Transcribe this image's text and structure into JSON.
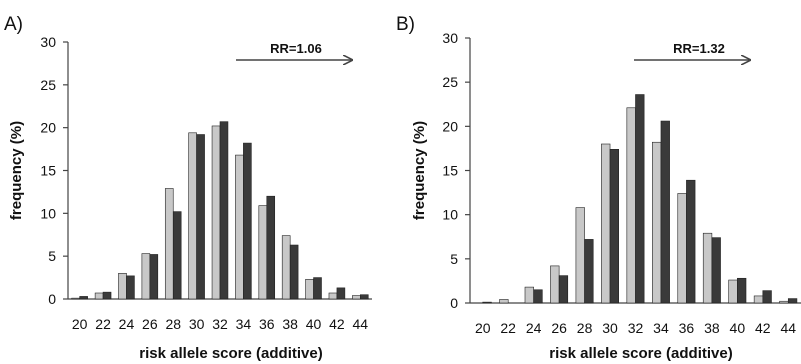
{
  "colors": {
    "background": "#ffffff",
    "axis": "#444444",
    "series_light": "#c8c8c8",
    "series_dark": "#3a3a3a",
    "bar_stroke": "#222222",
    "text": "#111111"
  },
  "chart_data": [
    {
      "type": "bar",
      "panel_label": "A)",
      "xlabel": "risk allele score (additive)",
      "ylabel": "frequency (%)",
      "ylim": [
        0,
        30
      ],
      "yticks": [
        "0",
        "5",
        "10",
        "15",
        "20",
        "25",
        "30"
      ],
      "grid": false,
      "categories": [
        "20",
        "22",
        "24",
        "26",
        "28",
        "30",
        "32",
        "34",
        "36",
        "38",
        "40",
        "42",
        "44"
      ],
      "series": [
        {
          "values": [
            0.1,
            0.7,
            3.0,
            5.3,
            12.9,
            19.4,
            20.2,
            16.8,
            10.9,
            7.4,
            2.3,
            0.7,
            0.4
          ]
        },
        {
          "values": [
            0.3,
            0.8,
            2.7,
            5.2,
            10.2,
            19.2,
            20.7,
            18.2,
            12.0,
            6.3,
            2.5,
            1.3,
            0.5
          ]
        }
      ],
      "annotation": {
        "text": "RR=1.06",
        "arrow": "right"
      }
    },
    {
      "type": "bar",
      "panel_label": "B)",
      "xlabel": "risk allele score (additive)",
      "ylabel": "frequency (%)",
      "ylim": [
        0,
        30
      ],
      "yticks": [
        "0",
        "5",
        "10",
        "15",
        "20",
        "25",
        "30"
      ],
      "grid": false,
      "categories": [
        "20",
        "22",
        "24",
        "26",
        "28",
        "30",
        "32",
        "34",
        "36",
        "38",
        "40",
        "42",
        "44"
      ],
      "series": [
        {
          "values": [
            0.0,
            0.4,
            1.8,
            4.2,
            10.8,
            18.0,
            22.1,
            18.2,
            12.4,
            7.9,
            2.6,
            0.8,
            0.2
          ]
        },
        {
          "values": [
            0.1,
            0.0,
            1.5,
            3.1,
            7.2,
            17.4,
            23.6,
            20.6,
            13.9,
            7.4,
            2.8,
            1.4,
            0.5
          ]
        }
      ],
      "annotation": {
        "text": "RR=1.32",
        "arrow": "right"
      }
    }
  ]
}
